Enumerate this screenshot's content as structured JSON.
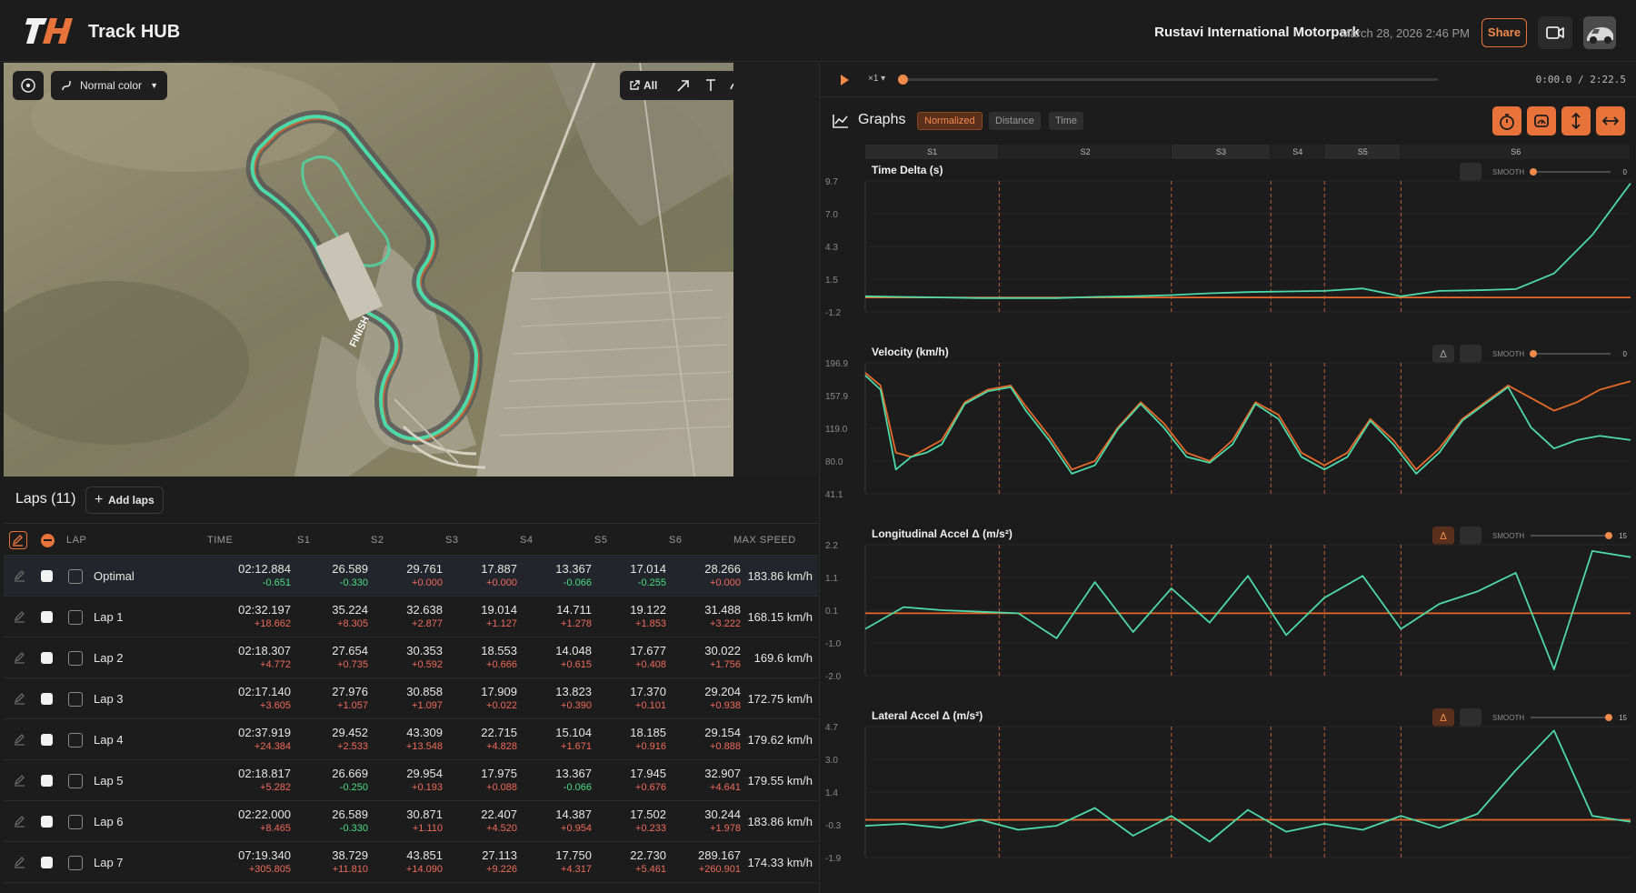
{
  "header": {
    "app_title": "Track HUB",
    "track_name": "Rustavi International Motorpark",
    "session_date": "March 28, 2026 2:46 PM",
    "share_label": "Share"
  },
  "map": {
    "color_mode": "Normal color",
    "all_label": "All",
    "finish_label": "FINISH"
  },
  "laps": {
    "title": "Laps (11)",
    "add_label": "Add laps",
    "columns": [
      "LAP",
      "TIME",
      "S1",
      "S2",
      "S3",
      "S4",
      "S5",
      "S6",
      "MAX SPEED"
    ],
    "rows": [
      {
        "name": "Optimal",
        "time": "02:12.884",
        "time_d": "-0.651",
        "s1": "26.589",
        "s1_d": "-0.330",
        "s2": "29.761",
        "s2_d": "+0.000",
        "s3": "17.887",
        "s3_d": "+0.000",
        "s4": "13.367",
        "s4_d": "-0.066",
        "s5": "17.014",
        "s5_d": "-0.255",
        "s6": "28.266",
        "s6_d": "+0.000",
        "max": "183.86 km/h"
      },
      {
        "name": "Lap 1",
        "time": "02:32.197",
        "time_d": "+18.662",
        "s1": "35.224",
        "s1_d": "+8.305",
        "s2": "32.638",
        "s2_d": "+2.877",
        "s3": "19.014",
        "s3_d": "+1.127",
        "s4": "14.711",
        "s4_d": "+1.278",
        "s5": "19.122",
        "s5_d": "+1.853",
        "s6": "31.488",
        "s6_d": "+3.222",
        "max": "168.15 km/h"
      },
      {
        "name": "Lap 2",
        "time": "02:18.307",
        "time_d": "+4.772",
        "s1": "27.654",
        "s1_d": "+0.735",
        "s2": "30.353",
        "s2_d": "+0.592",
        "s3": "18.553",
        "s3_d": "+0.666",
        "s4": "14.048",
        "s4_d": "+0.615",
        "s5": "17.677",
        "s5_d": "+0.408",
        "s6": "30.022",
        "s6_d": "+1.756",
        "max": "169.6 km/h"
      },
      {
        "name": "Lap 3",
        "time": "02:17.140",
        "time_d": "+3.605",
        "s1": "27.976",
        "s1_d": "+1.057",
        "s2": "30.858",
        "s2_d": "+1.097",
        "s3": "17.909",
        "s3_d": "+0.022",
        "s4": "13.823",
        "s4_d": "+0.390",
        "s5": "17.370",
        "s5_d": "+0.101",
        "s6": "29.204",
        "s6_d": "+0.938",
        "max": "172.75 km/h"
      },
      {
        "name": "Lap 4",
        "time": "02:37.919",
        "time_d": "+24.384",
        "s1": "29.452",
        "s1_d": "+2.533",
        "s2": "43.309",
        "s2_d": "+13.548",
        "s3": "22.715",
        "s3_d": "+4.828",
        "s4": "15.104",
        "s4_d": "+1.671",
        "s5": "18.185",
        "s5_d": "+0.916",
        "s6": "29.154",
        "s6_d": "+0.888",
        "max": "179.62 km/h"
      },
      {
        "name": "Lap 5",
        "time": "02:18.817",
        "time_d": "+5.282",
        "s1": "26.669",
        "s1_d": "-0.250",
        "s2": "29.954",
        "s2_d": "+0.193",
        "s3": "17.975",
        "s3_d": "+0.088",
        "s4": "13.367",
        "s4_d": "-0.066",
        "s5": "17.945",
        "s5_d": "+0.676",
        "s6": "32.907",
        "s6_d": "+4.641",
        "max": "179.55 km/h"
      },
      {
        "name": "Lap 6",
        "time": "02:22.000",
        "time_d": "+8.465",
        "s1": "26.589",
        "s1_d": "-0.330",
        "s2": "30.871",
        "s2_d": "+1.110",
        "s3": "22.407",
        "s3_d": "+4.520",
        "s4": "14.387",
        "s4_d": "+0.954",
        "s5": "17.502",
        "s5_d": "+0.233",
        "s6": "30.244",
        "s6_d": "+1.978",
        "max": "183.86 km/h"
      },
      {
        "name": "Lap 7",
        "time": "07:19.340",
        "time_d": "+305.805",
        "s1": "38.729",
        "s1_d": "+11.810",
        "s2": "43.851",
        "s2_d": "+14.090",
        "s3": "27.113",
        "s3_d": "+9.226",
        "s4": "17.750",
        "s4_d": "+4.317",
        "s5": "22.730",
        "s5_d": "+5.461",
        "s6": "289.167",
        "s6_d": "+260.901",
        "max": "174.33 km/h"
      }
    ]
  },
  "player": {
    "speed": "×1",
    "timecode": "0:00.0 / 2:22.5"
  },
  "graphs": {
    "title": "Graphs",
    "modes": [
      "Normalized",
      "Distance",
      "Time"
    ],
    "sectors": [
      "S1",
      "S2",
      "S3",
      "S4",
      "S5",
      "S6"
    ],
    "smooth_label": "SMOOTH",
    "charts": [
      {
        "title": "Time Delta (s)",
        "ticks": [
          "9.7",
          "7.0",
          "4.3",
          "1.5",
          "-1.2"
        ],
        "smooth_value": "0"
      },
      {
        "title": "Velocity (km/h)",
        "ticks": [
          "196.9",
          "157.9",
          "119.0",
          "80.0",
          "41.1"
        ],
        "smooth_value": "0"
      },
      {
        "title": "Longitudinal Accel Δ (m/s²)",
        "ticks": [
          "2.2",
          "1.1",
          "0.1",
          "-1.0",
          "-2.0"
        ],
        "smooth_value": "15"
      },
      {
        "title": "Lateral Accel Δ (m/s²)",
        "ticks": [
          "4.7",
          "3.0",
          "1.4",
          "-0.3",
          "-1.9"
        ],
        "smooth_value": "15"
      }
    ]
  },
  "chart_data": [
    {
      "type": "line",
      "title": "Time Delta (s)",
      "ylim": [
        -1.2,
        9.7
      ],
      "x": [
        0,
        0.05,
        0.1,
        0.15,
        0.2,
        0.25,
        0.3,
        0.35,
        0.4,
        0.45,
        0.5,
        0.55,
        0.6,
        0.65,
        0.7,
        0.75,
        0.8,
        0.85,
        0.9,
        0.95,
        1.0
      ],
      "series": [
        {
          "values": [
            0,
            0,
            0,
            0,
            0,
            0,
            0,
            0,
            0,
            0,
            0,
            0,
            0,
            0,
            0,
            0,
            0,
            0,
            0,
            0,
            0
          ]
        },
        {
          "values": [
            0.1,
            0.05,
            0.0,
            -0.05,
            -0.05,
            -0.05,
            0.05,
            0.1,
            0.2,
            0.35,
            0.45,
            0.5,
            0.55,
            0.75,
            0.1,
            0.55,
            0.6,
            0.7,
            2.0,
            5.2,
            9.5
          ]
        }
      ]
    },
    {
      "type": "line",
      "title": "Velocity (km/h)",
      "ylim": [
        41.1,
        196.9
      ],
      "x": [
        0,
        0.02,
        0.04,
        0.06,
        0.08,
        0.1,
        0.13,
        0.16,
        0.19,
        0.21,
        0.24,
        0.27,
        0.3,
        0.33,
        0.36,
        0.39,
        0.42,
        0.45,
        0.48,
        0.51,
        0.54,
        0.57,
        0.6,
        0.63,
        0.66,
        0.69,
        0.72,
        0.75,
        0.78,
        0.81,
        0.84,
        0.87,
        0.9,
        0.93,
        0.96,
        1.0
      ],
      "series": [
        {
          "values": [
            185,
            170,
            90,
            85,
            95,
            105,
            150,
            165,
            170,
            145,
            110,
            70,
            80,
            120,
            150,
            125,
            90,
            80,
            105,
            150,
            135,
            90,
            75,
            90,
            130,
            105,
            70,
            95,
            130,
            150,
            170,
            155,
            140,
            150,
            165,
            175
          ]
        },
        {
          "values": [
            182,
            165,
            70,
            85,
            90,
            100,
            148,
            163,
            168,
            140,
            105,
            65,
            75,
            118,
            148,
            120,
            85,
            78,
            100,
            148,
            130,
            85,
            70,
            85,
            128,
            100,
            65,
            90,
            128,
            148,
            168,
            120,
            95,
            105,
            110,
            105
          ]
        }
      ]
    },
    {
      "type": "line",
      "title": "Longitudinal Accel Δ (m/s²)",
      "ylim": [
        -2.0,
        2.2
      ],
      "x": [
        0,
        0.05,
        0.1,
        0.15,
        0.2,
        0.25,
        0.3,
        0.35,
        0.4,
        0.45,
        0.5,
        0.55,
        0.6,
        0.65,
        0.7,
        0.75,
        0.8,
        0.85,
        0.9,
        0.95,
        1.0
      ],
      "series": [
        {
          "values": [
            0,
            0,
            0,
            0,
            0,
            0,
            0,
            0,
            0,
            0,
            0,
            0,
            0,
            0,
            0,
            0,
            0,
            0,
            0,
            0,
            0
          ]
        },
        {
          "values": [
            -0.5,
            0.2,
            0.1,
            0.05,
            0.0,
            -0.8,
            1.0,
            -0.6,
            0.8,
            -0.3,
            1.2,
            -0.7,
            0.5,
            1.2,
            -0.5,
            0.3,
            0.7,
            1.3,
            -1.8,
            2.0,
            1.8
          ]
        }
      ]
    },
    {
      "type": "line",
      "title": "Lateral Accel Δ (m/s²)",
      "ylim": [
        -1.9,
        4.7
      ],
      "x": [
        0,
        0.05,
        0.1,
        0.15,
        0.2,
        0.25,
        0.3,
        0.35,
        0.4,
        0.45,
        0.5,
        0.55,
        0.6,
        0.65,
        0.7,
        0.75,
        0.8,
        0.85,
        0.9,
        0.95,
        1.0
      ],
      "series": [
        {
          "values": [
            0,
            0,
            0,
            0,
            0,
            0,
            0,
            0,
            0,
            0,
            0,
            0,
            0,
            0,
            0,
            0,
            0,
            0,
            0,
            0,
            0
          ]
        },
        {
          "values": [
            -0.3,
            -0.2,
            -0.4,
            0.0,
            -0.5,
            -0.3,
            0.6,
            -0.8,
            0.2,
            -1.1,
            0.5,
            -0.6,
            -0.2,
            -0.5,
            0.2,
            -0.4,
            0.3,
            2.5,
            4.5,
            0.2,
            -0.1
          ]
        }
      ]
    }
  ],
  "colors": {
    "accent": "#e8733a",
    "lap_a": "#4dd9a8",
    "lap_b": "#e86a2a"
  }
}
